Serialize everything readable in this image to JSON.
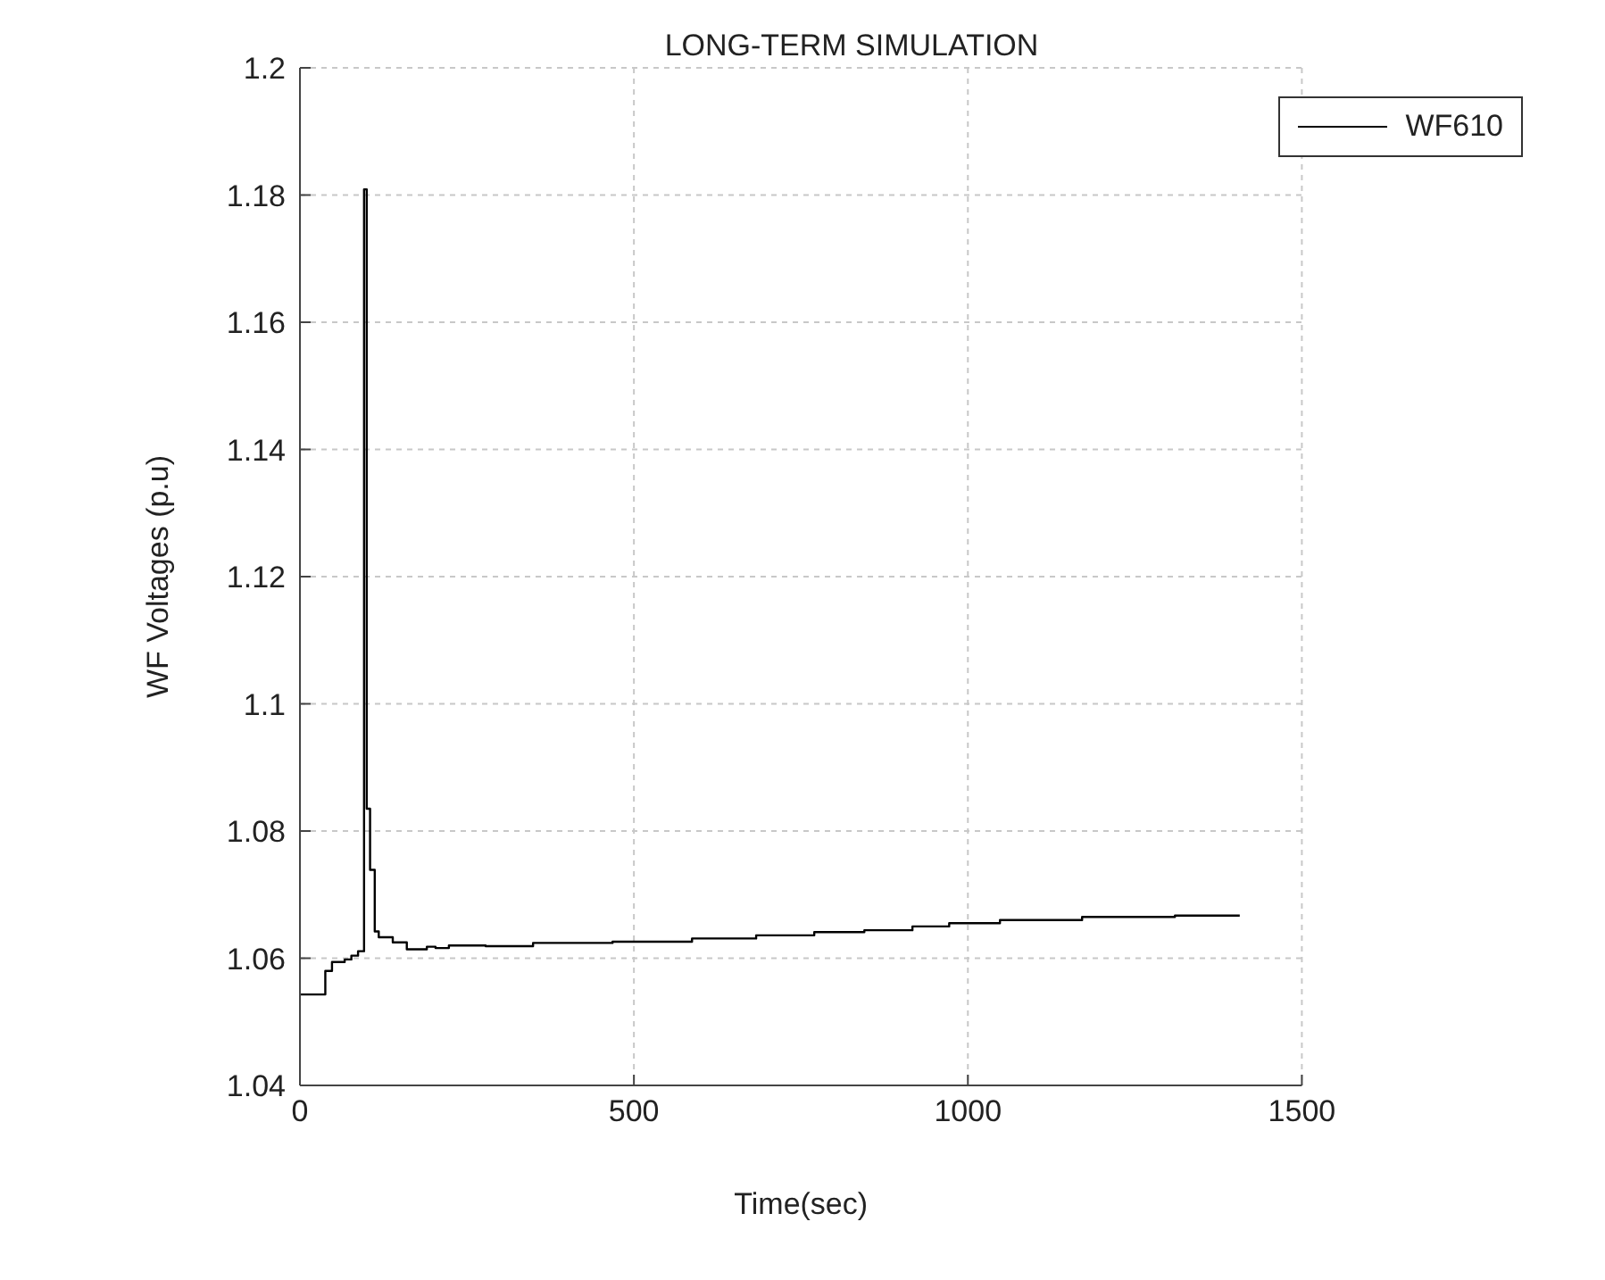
{
  "chart_data": {
    "type": "step",
    "title": "LONG-TERM SIMULATION",
    "xlabel": "Time(sec)",
    "ylabel": "WF Voltages (p.u)",
    "series": [
      {
        "name": "WF610",
        "color": "#000000",
        "x": [
          0,
          38,
          48,
          67,
          77,
          87,
          96,
          100,
          105,
          112,
          118,
          139,
          160,
          190,
          203,
          223,
          278,
          349,
          468,
          587,
          683,
          770,
          845,
          917,
          972,
          1048,
          1171,
          1310,
          1407
        ],
        "values": [
          1.0543,
          1.058,
          1.0594,
          1.0598,
          1.0604,
          1.0611,
          1.1809,
          1.0835,
          1.0739,
          1.0642,
          1.0633,
          1.0625,
          1.0614,
          1.0618,
          1.0616,
          1.062,
          1.0619,
          1.0624,
          1.0626,
          1.0631,
          1.0636,
          1.0641,
          1.0644,
          1.065,
          1.0655,
          1.066,
          1.0665,
          1.0667,
          1.0667
        ]
      }
    ],
    "xlim": [
      0,
      1500
    ],
    "xticks": [
      0,
      500,
      1000,
      1500
    ],
    "ylim": [
      1.04,
      1.2
    ],
    "yticks": [
      1.04,
      1.06,
      1.08,
      1.1,
      1.12,
      1.14,
      1.16,
      1.18,
      1.2
    ],
    "grid": true,
    "legend": "top right",
    "marker": "none",
    "line_style": "solid"
  }
}
